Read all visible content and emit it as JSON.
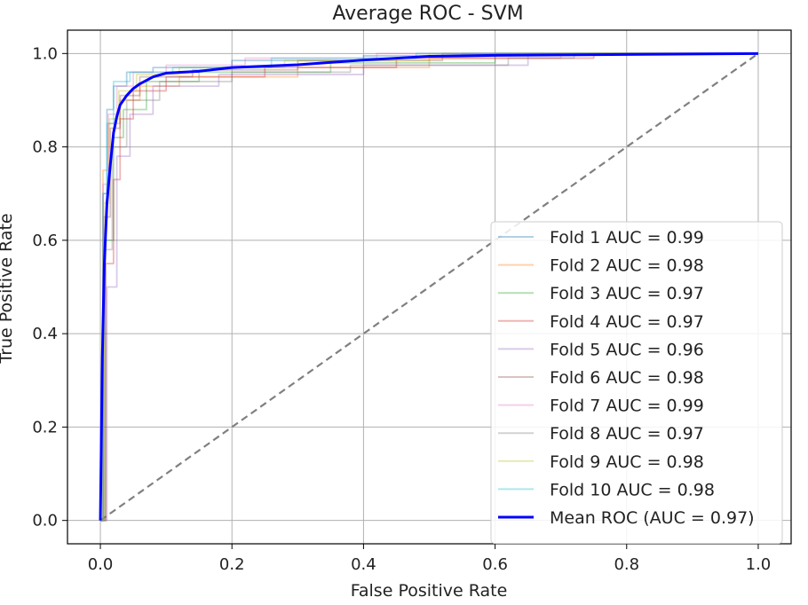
{
  "chart_data": {
    "type": "line",
    "title": "Average ROC - SVM",
    "xlabel": "False Positive Rate",
    "ylabel": "True Positive Rate",
    "xlim": [
      -0.05,
      1.05
    ],
    "ylim": [
      -0.05,
      1.05
    ],
    "grid": true,
    "xticks": [
      0.0,
      0.2,
      0.4,
      0.6,
      0.8,
      1.0
    ],
    "xtick_labels": [
      "0.0",
      "0.2",
      "0.4",
      "0.6",
      "0.8",
      "1.0"
    ],
    "yticks": [
      0.0,
      0.2,
      0.4,
      0.6,
      0.8,
      1.0
    ],
    "ytick_labels": [
      "0.0",
      "0.2",
      "0.4",
      "0.6",
      "0.8",
      "1.0"
    ],
    "legend_position": "lower-right",
    "chance_line": {
      "x": [
        0,
        1
      ],
      "y": [
        0,
        1
      ],
      "color": "#808080",
      "style": "dashed"
    },
    "series": [
      {
        "name": "Fold 1 AUC = 0.99",
        "color": "#1f77b4",
        "alpha": 0.35,
        "x": [
          0,
          0.004,
          0.004,
          0.01,
          0.01,
          0.02,
          0.02,
          0.04,
          0.04,
          0.08,
          0.08,
          0.2,
          0.2,
          0.4,
          0.4,
          0.55,
          0.55,
          1.0
        ],
        "y": [
          0,
          0,
          0.7,
          0.7,
          0.88,
          0.88,
          0.93,
          0.93,
          0.96,
          0.96,
          0.97,
          0.97,
          0.985,
          0.985,
          0.995,
          0.995,
          1.0,
          1.0
        ]
      },
      {
        "name": "Fold 2 AUC = 0.98",
        "color": "#ff7f0e",
        "alpha": 0.35,
        "x": [
          0,
          0.004,
          0.004,
          0.012,
          0.012,
          0.03,
          0.03,
          0.06,
          0.06,
          0.12,
          0.12,
          0.3,
          0.3,
          0.5,
          0.5,
          0.7,
          0.7,
          1.0
        ],
        "y": [
          0,
          0,
          0.75,
          0.75,
          0.85,
          0.85,
          0.9,
          0.9,
          0.93,
          0.93,
          0.95,
          0.95,
          0.97,
          0.97,
          0.99,
          0.99,
          1.0,
          1.0
        ]
      },
      {
        "name": "Fold 3 AUC = 0.97",
        "color": "#2ca02c",
        "alpha": 0.35,
        "x": [
          0,
          0.006,
          0.006,
          0.02,
          0.02,
          0.035,
          0.035,
          0.07,
          0.07,
          0.15,
          0.15,
          0.35,
          0.35,
          0.6,
          0.6,
          1.0
        ],
        "y": [
          0,
          0,
          0.6,
          0.6,
          0.82,
          0.82,
          0.88,
          0.88,
          0.94,
          0.94,
          0.96,
          0.96,
          0.98,
          0.98,
          1.0,
          1.0
        ]
      },
      {
        "name": "Fold 4 AUC = 0.97",
        "color": "#d62728",
        "alpha": 0.35,
        "x": [
          0,
          0.008,
          0.008,
          0.02,
          0.02,
          0.03,
          0.03,
          0.05,
          0.05,
          0.1,
          0.1,
          0.25,
          0.25,
          0.45,
          0.45,
          0.75,
          0.75,
          1.0
        ],
        "y": [
          0,
          0,
          0.55,
          0.55,
          0.73,
          0.73,
          0.86,
          0.86,
          0.92,
          0.92,
          0.95,
          0.95,
          0.97,
          0.97,
          0.99,
          0.99,
          1.0,
          1.0
        ]
      },
      {
        "name": "Fold 5 AUC = 0.96",
        "color": "#9467bd",
        "alpha": 0.35,
        "x": [
          0,
          0.01,
          0.01,
          0.025,
          0.025,
          0.045,
          0.045,
          0.08,
          0.08,
          0.18,
          0.18,
          0.4,
          0.4,
          0.65,
          0.65,
          1.0
        ],
        "y": [
          0,
          0,
          0.5,
          0.5,
          0.78,
          0.78,
          0.87,
          0.87,
          0.93,
          0.93,
          0.955,
          0.955,
          0.975,
          0.975,
          1.0,
          1.0
        ]
      },
      {
        "name": "Fold 6 AUC = 0.98",
        "color": "#8c564b",
        "alpha": 0.35,
        "x": [
          0,
          0.005,
          0.005,
          0.015,
          0.015,
          0.03,
          0.03,
          0.06,
          0.06,
          0.14,
          0.14,
          0.3,
          0.3,
          0.52,
          0.52,
          1.0
        ],
        "y": [
          0,
          0,
          0.65,
          0.65,
          0.84,
          0.84,
          0.91,
          0.91,
          0.95,
          0.95,
          0.965,
          0.965,
          0.985,
          0.985,
          1.0,
          1.0
        ]
      },
      {
        "name": "Fold 7 AUC = 0.99",
        "color": "#e377c2",
        "alpha": 0.35,
        "x": [
          0,
          0.004,
          0.004,
          0.012,
          0.012,
          0.025,
          0.025,
          0.05,
          0.05,
          0.1,
          0.1,
          0.22,
          0.22,
          0.42,
          0.42,
          1.0
        ],
        "y": [
          0,
          0,
          0.72,
          0.72,
          0.87,
          0.87,
          0.93,
          0.93,
          0.96,
          0.96,
          0.975,
          0.975,
          0.99,
          0.99,
          1.0,
          1.0
        ]
      },
      {
        "name": "Fold 8 AUC = 0.97",
        "color": "#7f7f7f",
        "alpha": 0.35,
        "x": [
          0,
          0.008,
          0.008,
          0.018,
          0.018,
          0.04,
          0.04,
          0.09,
          0.09,
          0.2,
          0.2,
          0.38,
          0.38,
          0.62,
          0.62,
          0.72,
          0.72,
          1.0
        ],
        "y": [
          0,
          0,
          0.58,
          0.58,
          0.8,
          0.8,
          0.9,
          0.9,
          0.94,
          0.94,
          0.96,
          0.96,
          0.975,
          0.975,
          0.99,
          0.99,
          1.0,
          1.0
        ]
      },
      {
        "name": "Fold 9 AUC = 0.98",
        "color": "#bcbd22",
        "alpha": 0.35,
        "x": [
          0,
          0.005,
          0.005,
          0.014,
          0.014,
          0.028,
          0.028,
          0.055,
          0.055,
          0.12,
          0.12,
          0.28,
          0.28,
          0.5,
          0.5,
          1.0
        ],
        "y": [
          0,
          0,
          0.68,
          0.68,
          0.86,
          0.86,
          0.92,
          0.92,
          0.955,
          0.955,
          0.97,
          0.97,
          0.985,
          0.985,
          1.0,
          1.0
        ]
      },
      {
        "name": "Fold 10 AUC = 0.98",
        "color": "#17becf",
        "alpha": 0.35,
        "x": [
          0,
          0.004,
          0.004,
          0.01,
          0.01,
          0.02,
          0.02,
          0.045,
          0.045,
          0.11,
          0.11,
          0.26,
          0.26,
          0.48,
          0.48,
          1.0
        ],
        "y": [
          0,
          0,
          0.7,
          0.7,
          0.85,
          0.85,
          0.94,
          0.94,
          0.96,
          0.96,
          0.97,
          0.97,
          0.99,
          0.99,
          1.0,
          1.0
        ]
      },
      {
        "name": "Mean ROC (AUC = 0.97)",
        "color": "#0000ff",
        "alpha": 1.0,
        "bold": true,
        "x": [
          0,
          0.003,
          0.006,
          0.01,
          0.015,
          0.02,
          0.025,
          0.03,
          0.04,
          0.05,
          0.06,
          0.08,
          0.1,
          0.15,
          0.2,
          0.3,
          0.4,
          0.5,
          0.6,
          0.7,
          0.8,
          0.9,
          1.0
        ],
        "y": [
          0,
          0.35,
          0.55,
          0.68,
          0.76,
          0.83,
          0.865,
          0.89,
          0.91,
          0.925,
          0.935,
          0.95,
          0.958,
          0.962,
          0.97,
          0.976,
          0.986,
          0.994,
          0.996,
          0.997,
          0.998,
          0.999,
          1.0
        ]
      }
    ]
  }
}
